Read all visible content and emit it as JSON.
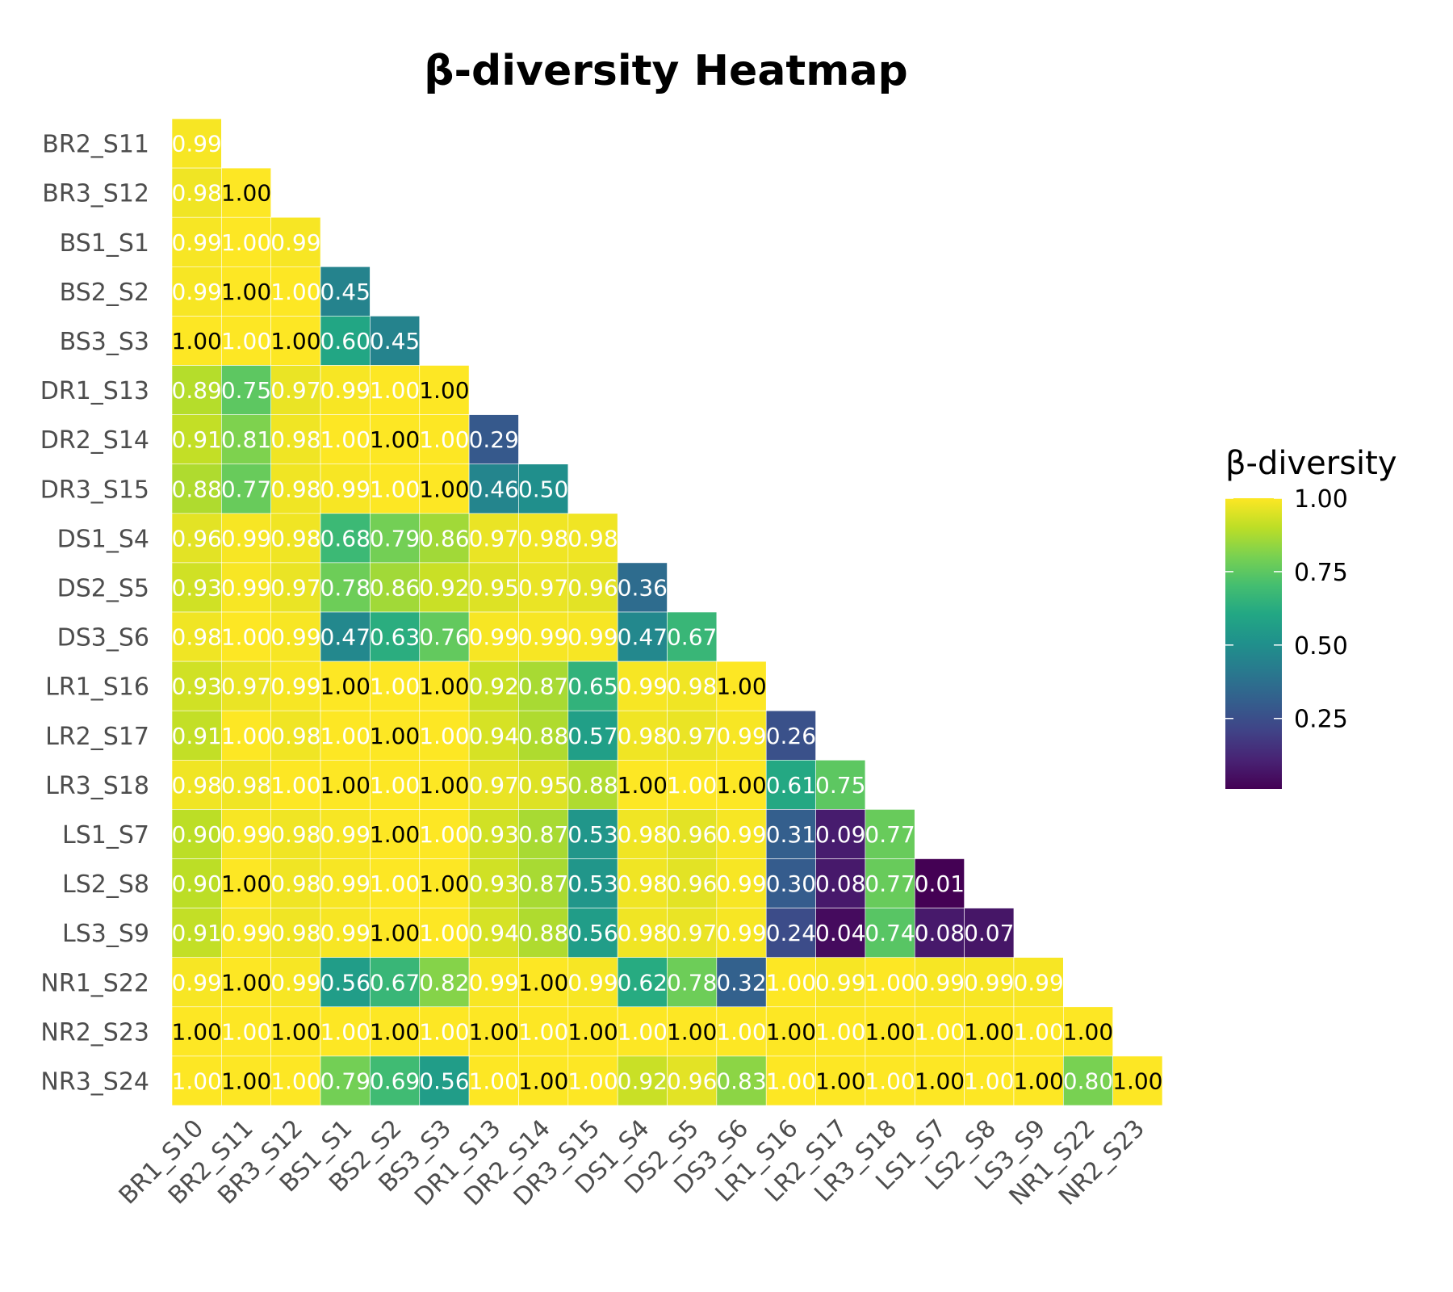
{
  "chart_data": {
    "type": "heatmap",
    "title": "β-diversity Heatmap",
    "xlabel": "",
    "ylabel": "",
    "x_categories": [
      "BR1_S10",
      "BR2_S11",
      "BR3_S12",
      "BS1_S1",
      "BS2_S2",
      "BS3_S3",
      "DR1_S13",
      "DR2_S14",
      "DR3_S15",
      "DS1_S4",
      "DS2_S5",
      "DS3_S6",
      "LR1_S16",
      "LR2_S17",
      "LR3_S18",
      "LS1_S7",
      "LS2_S8",
      "LS3_S9",
      "NR1_S22",
      "NR2_S23"
    ],
    "y_categories": [
      "BR2_S11",
      "BR3_S12",
      "BS1_S1",
      "BS2_S2",
      "BS3_S3",
      "DR1_S13",
      "DR2_S14",
      "DR3_S15",
      "DS1_S4",
      "DS2_S5",
      "DS3_S6",
      "LR1_S16",
      "LR2_S17",
      "LR3_S18",
      "LS1_S7",
      "LS2_S8",
      "LS3_S9",
      "NR1_S22",
      "NR2_S23",
      "NR3_S24"
    ],
    "matrix": [
      [
        0.99
      ],
      [
        0.98,
        1.0
      ],
      [
        0.99,
        1.0,
        0.99
      ],
      [
        0.99,
        1.0,
        1.0,
        0.45
      ],
      [
        1.0,
        1.0,
        1.0,
        0.6,
        0.45
      ],
      [
        0.89,
        0.75,
        0.97,
        0.99,
        1.0,
        1.0
      ],
      [
        0.91,
        0.81,
        0.98,
        1.0,
        1.0,
        1.0,
        0.29
      ],
      [
        0.88,
        0.77,
        0.98,
        0.99,
        1.0,
        1.0,
        0.46,
        0.5
      ],
      [
        0.96,
        0.99,
        0.98,
        0.68,
        0.79,
        0.86,
        0.97,
        0.98,
        0.98
      ],
      [
        0.93,
        0.99,
        0.97,
        0.78,
        0.86,
        0.92,
        0.95,
        0.97,
        0.96,
        0.36
      ],
      [
        0.98,
        1.0,
        0.99,
        0.47,
        0.63,
        0.76,
        0.99,
        0.99,
        0.99,
        0.47,
        0.67
      ],
      [
        0.93,
        0.97,
        0.99,
        1.0,
        1.0,
        1.0,
        0.92,
        0.87,
        0.65,
        0.99,
        0.98,
        1.0
      ],
      [
        0.91,
        1.0,
        0.98,
        1.0,
        1.0,
        1.0,
        0.94,
        0.88,
        0.57,
        0.98,
        0.97,
        0.99,
        0.26
      ],
      [
        0.98,
        0.98,
        1.0,
        1.0,
        1.0,
        1.0,
        0.97,
        0.95,
        0.88,
        1.0,
        1.0,
        1.0,
        0.61,
        0.75
      ],
      [
        0.9,
        0.99,
        0.98,
        0.99,
        1.0,
        1.0,
        0.93,
        0.87,
        0.53,
        0.98,
        0.96,
        0.99,
        0.31,
        0.09,
        0.77
      ],
      [
        0.9,
        1.0,
        0.98,
        0.99,
        1.0,
        1.0,
        0.93,
        0.87,
        0.53,
        0.98,
        0.96,
        0.99,
        0.3,
        0.08,
        0.77,
        0.01
      ],
      [
        0.91,
        0.99,
        0.98,
        0.99,
        1.0,
        1.0,
        0.94,
        0.88,
        0.56,
        0.98,
        0.97,
        0.99,
        0.24,
        0.04,
        0.74,
        0.08,
        0.07
      ],
      [
        0.99,
        1.0,
        0.99,
        0.56,
        0.67,
        0.82,
        0.99,
        1.0,
        0.99,
        0.62,
        0.78,
        0.32,
        1.0,
        0.99,
        1.0,
        0.99,
        0.99,
        0.99
      ],
      [
        1.0,
        1.0,
        1.0,
        1.0,
        1.0,
        1.0,
        1.0,
        1.0,
        1.0,
        1.0,
        1.0,
        1.0,
        1.0,
        1.0,
        1.0,
        1.0,
        1.0,
        1.0,
        1.0
      ],
      [
        1.0,
        1.0,
        1.0,
        0.79,
        0.69,
        0.56,
        1.0,
        1.0,
        1.0,
        0.92,
        0.96,
        0.83,
        1.0,
        1.0,
        1.0,
        1.0,
        1.0,
        1.0,
        0.8,
        1.0
      ]
    ],
    "value_format": "0.00",
    "colorscale": "viridis",
    "legend": {
      "title": "β-diversity",
      "ticks": [
        "1.00",
        "0.75",
        "0.50",
        "0.25"
      ],
      "tick_values": [
        1.0,
        0.75,
        0.5,
        0.25
      ],
      "range": [
        0.01,
        1.0
      ],
      "placement": "right"
    },
    "grid": false
  }
}
